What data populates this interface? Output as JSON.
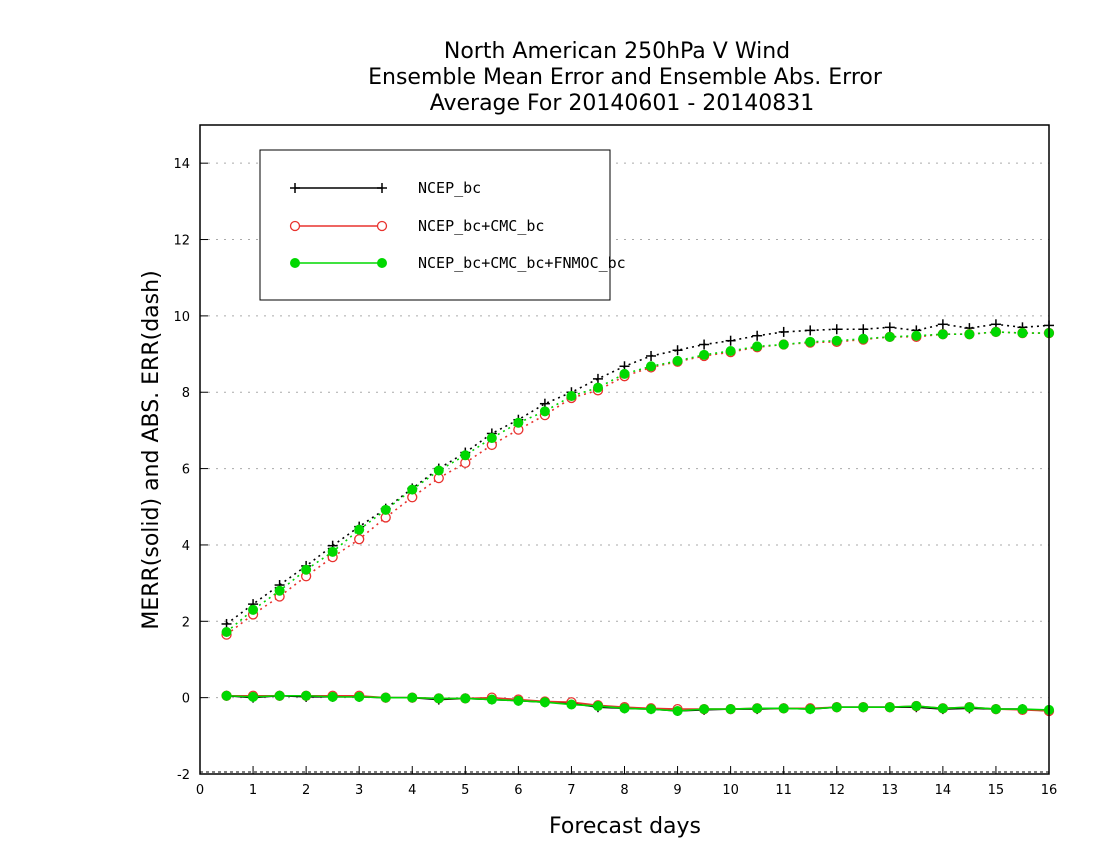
{
  "chart_data": {
    "type": "line",
    "title": [
      "North American 250hPa V Wind",
      "Ensemble Mean Error and Ensemble Abs. Error",
      "Average For 20140601 - 20140831"
    ],
    "xlabel": "Forecast days",
    "ylabel": "MERR(solid) and ABS. ERR(dash)",
    "xlim": [
      0,
      16
    ],
    "ylim": [
      -2,
      15
    ],
    "xticks": [
      "0",
      "1",
      "2",
      "3",
      "4",
      "5",
      "6",
      "7",
      "8",
      "9",
      "10",
      "11",
      "12",
      "13",
      "14",
      "15",
      "16"
    ],
    "yticks": [
      "-2",
      "0",
      "2",
      "4",
      "6",
      "8",
      "10",
      "12",
      "14"
    ],
    "grid": "horizontal dotted",
    "legend_position": "top-left",
    "x": [
      0.5,
      1,
      1.5,
      2,
      2.5,
      3,
      3.5,
      4,
      4.5,
      5,
      5.5,
      6,
      6.5,
      7,
      7.5,
      8,
      8.5,
      9,
      9.5,
      10,
      10.5,
      11,
      11.5,
      12,
      12.5,
      13,
      13.5,
      14,
      14.5,
      15,
      15.5,
      16
    ],
    "series": [
      {
        "name": "NCEP_bc",
        "color": "#000000",
        "marker": "plus",
        "abs_err": [
          1.93,
          2.45,
          2.95,
          3.45,
          3.98,
          4.48,
          4.95,
          5.48,
          6.0,
          6.42,
          6.92,
          7.28,
          7.7,
          8.0,
          8.35,
          8.68,
          8.95,
          9.1,
          9.25,
          9.35,
          9.48,
          9.58,
          9.62,
          9.65,
          9.65,
          9.7,
          9.62,
          9.78,
          9.68,
          9.78,
          9.7,
          9.75
        ],
        "merr": [
          0.05,
          0.0,
          0.05,
          0.02,
          0.02,
          0.02,
          0.0,
          0.0,
          -0.05,
          -0.02,
          -0.05,
          -0.08,
          -0.12,
          -0.15,
          -0.25,
          -0.28,
          -0.3,
          -0.35,
          -0.32,
          -0.3,
          -0.3,
          -0.28,
          -0.3,
          -0.25,
          -0.25,
          -0.25,
          -0.25,
          -0.3,
          -0.28,
          -0.3,
          -0.3,
          -0.35
        ]
      },
      {
        "name": "NCEP_bc+CMC_bc",
        "color": "#e8322e",
        "marker": "open-circle",
        "abs_err": [
          1.65,
          2.18,
          2.65,
          3.18,
          3.68,
          4.15,
          4.72,
          5.25,
          5.75,
          6.15,
          6.62,
          7.02,
          7.4,
          7.85,
          8.05,
          8.42,
          8.65,
          8.8,
          8.95,
          9.05,
          9.18,
          9.25,
          9.3,
          9.32,
          9.38,
          9.45,
          9.45,
          9.52,
          9.52,
          9.58,
          9.55,
          9.55
        ],
        "merr": [
          0.05,
          0.05,
          0.05,
          0.05,
          0.05,
          0.05,
          0.0,
          0.0,
          -0.02,
          -0.02,
          0.0,
          -0.05,
          -0.1,
          -0.12,
          -0.2,
          -0.25,
          -0.28,
          -0.3,
          -0.3,
          -0.3,
          -0.28,
          -0.28,
          -0.28,
          -0.25,
          -0.25,
          -0.25,
          -0.22,
          -0.28,
          -0.25,
          -0.3,
          -0.32,
          -0.35
        ]
      },
      {
        "name": "NCEP_bc+CMC_bc+FNMOC_bc",
        "color": "#00d800",
        "marker": "filled-circle",
        "abs_err": [
          1.72,
          2.3,
          2.8,
          3.35,
          3.82,
          4.4,
          4.92,
          5.45,
          5.95,
          6.35,
          6.8,
          7.2,
          7.5,
          7.9,
          8.12,
          8.48,
          8.68,
          8.82,
          8.98,
          9.08,
          9.2,
          9.25,
          9.32,
          9.35,
          9.4,
          9.45,
          9.48,
          9.52,
          9.52,
          9.58,
          9.55,
          9.55
        ],
        "merr": [
          0.05,
          0.02,
          0.05,
          0.05,
          0.02,
          0.02,
          0.0,
          0.0,
          -0.02,
          -0.02,
          -0.05,
          -0.08,
          -0.12,
          -0.18,
          -0.22,
          -0.28,
          -0.3,
          -0.35,
          -0.3,
          -0.3,
          -0.28,
          -0.28,
          -0.3,
          -0.25,
          -0.25,
          -0.25,
          -0.22,
          -0.28,
          -0.25,
          -0.3,
          -0.3,
          -0.32
        ]
      }
    ]
  }
}
